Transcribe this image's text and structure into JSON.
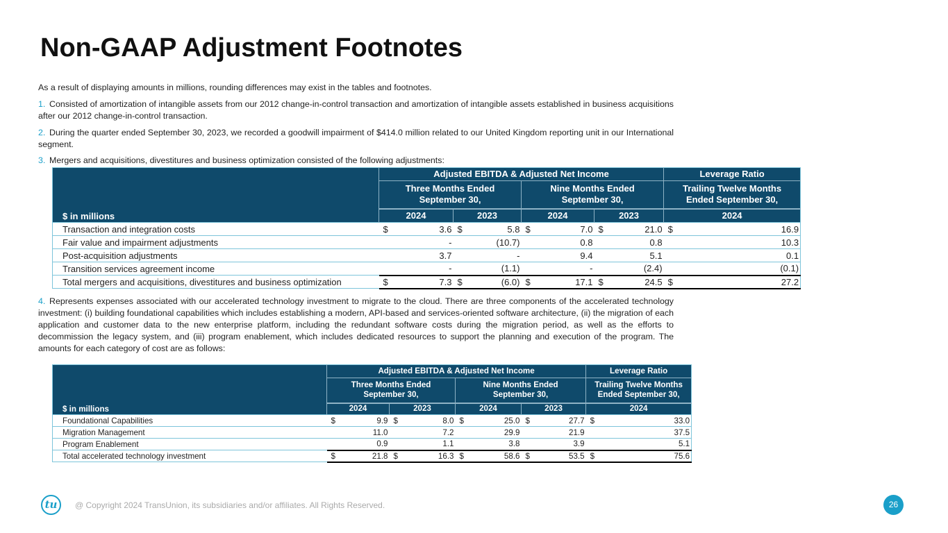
{
  "title": "Non-GAAP Adjustment Footnotes",
  "intro": "As a result of displaying amounts in millions, rounding differences may exist in the tables and footnotes.",
  "footnotes": [
    {
      "num": "1.",
      "text": "Consisted of amortization of intangible assets from our 2012 change-in-control transaction and amortization of intangible assets established in business acquisitions after our 2012 change-in-control transaction."
    },
    {
      "num": "2.",
      "text": "During the quarter ended September 30, 2023, we recorded a goodwill impairment of $414.0 million related to our United Kingdom reporting unit in our International segment."
    },
    {
      "num": "3.",
      "text": "Mergers and acquisitions, divestitures and business optimization consisted of the following adjustments:"
    },
    {
      "num": "4.",
      "text": "Represents expenses associated with our accelerated technology investment to migrate to the cloud. There are three components of the accelerated technology investment: (i) building foundational capabilities which includes establishing a modern, API-based and services-oriented software architecture, (ii) the migration of each application and customer data to the new enterprise platform, including the redundant software costs during the migration period, as well as the efforts to decommission the legacy system, and (iii) program enablement, which includes dedicated resources to support the planning and execution of the program. The amounts for each category of cost are as follows:"
    }
  ],
  "header": {
    "label": "$ in millions",
    "group1": "Adjusted EBITDA & Adjusted Net Income",
    "group2": "Leverage Ratio",
    "period1": [
      "Three Months Ended",
      "September 30,"
    ],
    "period2": [
      "Nine Months Ended",
      "September 30,"
    ],
    "period3": [
      "Trailing Twelve Months",
      "Ended September 30,"
    ],
    "years": [
      "2024",
      "2023",
      "2024",
      "2023",
      "2024"
    ]
  },
  "table1": {
    "rows": [
      {
        "label": "Transaction and integration costs",
        "dollar": true,
        "values": [
          "3.6",
          "5.8",
          "7.0",
          "21.0",
          "16.9"
        ]
      },
      {
        "label": "Fair value and impairment adjustments",
        "dollar": false,
        "values": [
          "-",
          "(10.7)",
          "0.8",
          "0.8",
          "10.3"
        ]
      },
      {
        "label": "Post-acquisition adjustments",
        "dollar": false,
        "values": [
          "3.7",
          "-",
          "9.4",
          "5.1",
          "0.1"
        ]
      },
      {
        "label": "Transition services agreement income",
        "dollar": false,
        "values": [
          "-",
          "(1.1)",
          "-",
          "(2.4)",
          "(0.1)"
        ]
      },
      {
        "label": "Total mergers and acquisitions, divestitures and business optimization",
        "dollar": true,
        "total": true,
        "values": [
          "7.3",
          "(6.0)",
          "17.1",
          "24.5",
          "27.2"
        ]
      }
    ]
  },
  "table2": {
    "rows": [
      {
        "label": "Foundational Capabilities",
        "dollar": true,
        "values": [
          "9.9",
          "8.0",
          "25.0",
          "27.7",
          "33.0"
        ]
      },
      {
        "label": "Migration Management",
        "dollar": false,
        "values": [
          "11.0",
          "7.2",
          "29.9",
          "21.9",
          "37.5"
        ]
      },
      {
        "label": "Program Enablement",
        "dollar": false,
        "values": [
          "0.9",
          "1.1",
          "3.8",
          "3.9",
          "5.1"
        ]
      },
      {
        "label": "Total accelerated technology investment",
        "dollar": true,
        "total": true,
        "values": [
          "21.8",
          "16.3",
          "58.6",
          "53.5",
          "75.6"
        ]
      }
    ]
  },
  "footer": {
    "logo": "tu",
    "copyright": "@ Copyright 2024 TransUnion, its subsidiaries and/or affiliates.  All Rights Reserved.",
    "page": "26"
  },
  "colors": {
    "accent": "#1a9fc9",
    "table_header": "#0f4a6b"
  }
}
